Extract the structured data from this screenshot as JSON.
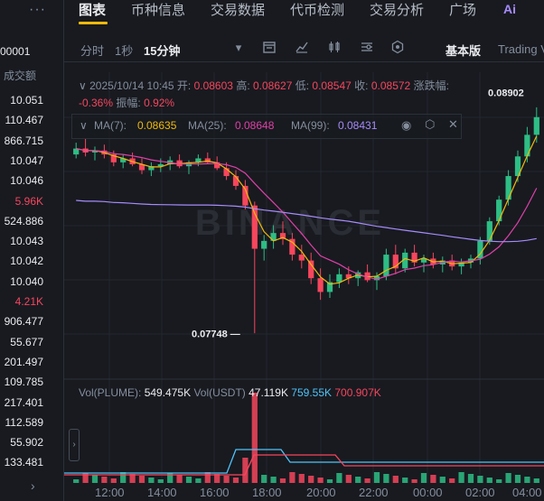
{
  "left_column": {
    "menu_icon": "dots-icon",
    "pair_suffix": "00001",
    "header": "成交额",
    "rows": [
      {
        "text": "10.051",
        "color": "white"
      },
      {
        "text": "110.467",
        "color": "white"
      },
      {
        "text": "866.715",
        "color": "white"
      },
      {
        "text": "10.047",
        "color": "white"
      },
      {
        "text": "10.046",
        "color": "white"
      },
      {
        "text": "5.96K",
        "color": "red"
      },
      {
        "text": "524.886",
        "color": "white"
      },
      {
        "text": "10.043",
        "color": "white"
      },
      {
        "text": "10.042",
        "color": "white"
      },
      {
        "text": "10.040",
        "color": "white"
      },
      {
        "text": "4.21K",
        "color": "red"
      },
      {
        "text": "906.477",
        "color": "white"
      },
      {
        "text": "55.677",
        "color": "white"
      },
      {
        "text": "201.497",
        "color": "white"
      },
      {
        "text": "109.785",
        "color": "white"
      },
      {
        "text": "217.401",
        "color": "white"
      },
      {
        "text": "112.589",
        "color": "white"
      },
      {
        "text": "55.902",
        "color": "white"
      },
      {
        "text": "133.481",
        "color": "white"
      }
    ]
  },
  "tabs": {
    "items": [
      "图表",
      "币种信息",
      "交易数据",
      "代币检测",
      "交易分析",
      "广场"
    ],
    "active": "图表",
    "ai_label": "Ai"
  },
  "toolbar": {
    "intervals": [
      "分时",
      "1秒",
      "15分钟"
    ],
    "active_interval": "15分钟",
    "basic_version": "基本版",
    "tradingview": "Trading V"
  },
  "ohlc": {
    "datetime": "2025/10/14 10:45",
    "open_label": "开:",
    "open": "0.08603",
    "high_label": "高:",
    "high": "0.08627",
    "low_label": "低:",
    "low": "0.08547",
    "close_label": "收:",
    "close": "0.08572",
    "change_label": "涨跌幅:",
    "change": "-0.36%",
    "amplitude_label": "振幅:",
    "amplitude": "0.92%"
  },
  "ma": {
    "ma7_label": "MA(7):",
    "ma7": "0.08635",
    "ma25_label": "MA(25):",
    "ma25": "0.08648",
    "ma99_label": "MA(99):",
    "ma99": "0.08431",
    "ma7_color": "#f0b90b",
    "ma25_color": "#e040a8",
    "ma99_color": "#a78bfa"
  },
  "volume": {
    "vol_label": "Vol(PLUME):",
    "vol": "549.475K",
    "vol_usdt_label": "Vol(USDT)",
    "vol_usdt": "47.119K",
    "vol_ma1": "759.55K",
    "vol_ma2": "700.907K"
  },
  "annotations": {
    "low_marker": "0.07748",
    "high_marker": "0.08902"
  },
  "watermark": "BINANCE",
  "x_axis": [
    "12:00",
    "14:00",
    "16:00",
    "18:00",
    "20:00",
    "22:00",
    "00:00",
    "02:00",
    "04:00"
  ],
  "colors": {
    "up": "#2ebd85",
    "down": "#f6465d",
    "accent": "#f0b90b"
  },
  "chart_data": {
    "type": "candlestick",
    "ylim": [
      0.077,
      0.0895
    ],
    "candles": [
      [
        0.0866,
        0.0872,
        0.0864,
        0.0869
      ],
      [
        0.0869,
        0.0874,
        0.0865,
        0.0867
      ],
      [
        0.0867,
        0.087,
        0.0863,
        0.0868
      ],
      [
        0.0868,
        0.0871,
        0.0864,
        0.0866
      ],
      [
        0.0866,
        0.0868,
        0.086,
        0.0862
      ],
      [
        0.0862,
        0.0866,
        0.0859,
        0.0864
      ],
      [
        0.0864,
        0.0867,
        0.086,
        0.0861
      ],
      [
        0.0861,
        0.0864,
        0.0856,
        0.0858
      ],
      [
        0.0858,
        0.0862,
        0.0855,
        0.086
      ],
      [
        0.086,
        0.0864,
        0.0857,
        0.0861
      ],
      [
        0.0861,
        0.0865,
        0.0858,
        0.0863
      ],
      [
        0.0863,
        0.0866,
        0.0859,
        0.086
      ],
      [
        0.086,
        0.0863,
        0.0856,
        0.0862
      ],
      [
        0.0862,
        0.0866,
        0.086,
        0.0864
      ],
      [
        0.0864,
        0.0867,
        0.0861,
        0.0862
      ],
      [
        0.0862,
        0.0865,
        0.0858,
        0.0859
      ],
      [
        0.0859,
        0.0862,
        0.0853,
        0.0855
      ],
      [
        0.0855,
        0.0858,
        0.0848,
        0.085
      ],
      [
        0.085,
        0.0853,
        0.0838,
        0.084
      ],
      [
        0.084,
        0.0842,
        0.0775,
        0.0818
      ],
      [
        0.0818,
        0.0825,
        0.0812,
        0.0822
      ],
      [
        0.0822,
        0.083,
        0.0818,
        0.0826
      ],
      [
        0.0826,
        0.0832,
        0.082,
        0.0823
      ],
      [
        0.0823,
        0.0826,
        0.0812,
        0.0815
      ],
      [
        0.0815,
        0.082,
        0.0808,
        0.0812
      ],
      [
        0.0812,
        0.0816,
        0.08,
        0.0803
      ],
      [
        0.0803,
        0.0808,
        0.0792,
        0.0796
      ],
      [
        0.0796,
        0.0805,
        0.0793,
        0.0801
      ],
      [
        0.0801,
        0.0808,
        0.0798,
        0.0805
      ],
      [
        0.0805,
        0.0809,
        0.08,
        0.0803
      ],
      [
        0.0803,
        0.0807,
        0.0799,
        0.0806
      ],
      [
        0.0806,
        0.081,
        0.0801,
        0.0802
      ],
      [
        0.0802,
        0.0806,
        0.0797,
        0.0804
      ],
      [
        0.0804,
        0.0818,
        0.0802,
        0.0815
      ],
      [
        0.0815,
        0.082,
        0.0805,
        0.0808
      ],
      [
        0.0808,
        0.0818,
        0.0806,
        0.0816
      ],
      [
        0.0816,
        0.082,
        0.0809,
        0.0811
      ],
      [
        0.0811,
        0.0815,
        0.0806,
        0.0813
      ],
      [
        0.0813,
        0.0816,
        0.0808,
        0.081
      ],
      [
        0.081,
        0.0814,
        0.0806,
        0.0812
      ],
      [
        0.0812,
        0.0815,
        0.0807,
        0.0809
      ],
      [
        0.0809,
        0.0813,
        0.0805,
        0.0811
      ],
      [
        0.0811,
        0.0815,
        0.0808,
        0.0813
      ],
      [
        0.0813,
        0.0824,
        0.081,
        0.0822
      ],
      [
        0.0822,
        0.0834,
        0.082,
        0.0832
      ],
      [
        0.0832,
        0.0845,
        0.083,
        0.0843
      ],
      [
        0.0843,
        0.0858,
        0.084,
        0.0855
      ],
      [
        0.0855,
        0.0868,
        0.0852,
        0.0865
      ],
      [
        0.0865,
        0.088,
        0.0862,
        0.0876
      ],
      [
        0.0876,
        0.089,
        0.0872,
        0.0885
      ]
    ]
  }
}
